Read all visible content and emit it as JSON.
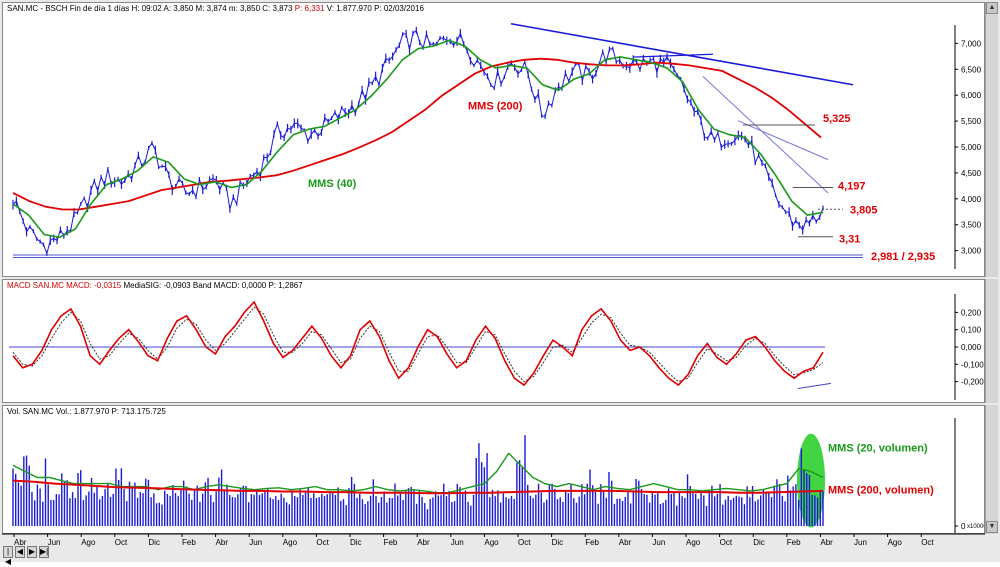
{
  "price_panel": {
    "header": {
      "ticker": "SAN.MC - BSCH",
      "rest": "Fin de día 1 días H: 09:02 A: 3,850 M: 3,874 m: 3,850 C: 3,873",
      "change": "P: 6,331",
      "tail": "V: 1.877.970 P: 02/03/2016"
    }
  },
  "macd_panel": {
    "header": {
      "label": "MACD SAN.MC MACD: -0,0315",
      "rest": "MediaSIG: -0,0903 Band MACD: 0,0000 P: 1,2867"
    }
  },
  "volume_panel": {
    "header": {
      "label": "Vol. SAN.MC Vol.: 1.877.970 P: 713.175.725"
    },
    "scale_tag": "x100000"
  },
  "colors": {
    "price": "#1a1adb",
    "ma200": "#e00000",
    "ma40": "#1a9a1a",
    "trend": "#1a1adb",
    "level_text": "#e00000",
    "macd_line": "#e00000",
    "signal_line": "#333333",
    "zero_line": "#4444cc",
    "volume_bars": "#1a1adb",
    "vol_ma20": "#1a9a1a",
    "vol_ma200": "#e00000",
    "highlight": "#22cc22"
  },
  "chart_data": [
    {
      "type": "line",
      "series": [
        {
          "values": [
            4.0,
            3.4,
            3.15,
            3.3,
            3.6,
            4.1,
            4.4,
            4.3,
            4.6,
            4.9,
            4.35,
            4.1,
            4.2,
            4.35,
            3.9,
            4.3,
            4.6,
            5.2,
            5.3,
            5.15,
            5.3,
            5.5,
            5.7,
            6.0,
            6.4,
            6.8,
            6.9,
            6.7,
            6.95,
            6.8,
            6.4,
            6.1,
            6.45,
            6.3,
            5.5,
            6.05,
            6.3,
            6.2,
            6.6,
            6.5,
            6.4,
            6.45,
            6.4,
            6.0,
            5.4,
            5.0,
            5.15,
            5.1,
            4.6,
            4.0,
            3.6,
            3.5,
            3.8
          ]
        },
        {
          "name": "MMS (40)",
          "values": [
            3.9,
            3.7,
            3.35,
            3.3,
            3.45,
            3.9,
            4.25,
            4.35,
            4.5,
            4.75,
            4.65,
            4.35,
            4.25,
            4.3,
            4.2,
            4.25,
            4.5,
            4.85,
            5.15,
            5.25,
            5.3,
            5.45,
            5.6,
            5.85,
            6.15,
            6.5,
            6.7,
            6.75,
            6.85,
            6.75,
            6.5,
            6.35,
            6.4,
            6.35,
            6.05,
            5.95,
            6.15,
            6.25,
            6.5,
            6.55,
            6.5,
            6.45,
            6.35,
            6.1,
            5.6,
            5.25,
            5.15,
            5.1,
            4.8,
            4.4,
            3.95,
            3.7,
            3.75
          ]
        },
        {
          "name": "MMS (200)",
          "values": [
            4.1,
            3.95,
            3.85,
            3.8,
            3.8,
            3.85,
            3.9,
            3.95,
            4.05,
            4.15,
            4.2,
            4.25,
            4.3,
            4.32,
            4.35,
            4.38,
            4.42,
            4.5,
            4.6,
            4.7,
            4.8,
            4.92,
            5.05,
            5.2,
            5.4,
            5.6,
            5.85,
            6.05,
            6.25,
            6.38,
            6.45,
            6.5,
            6.52,
            6.5,
            6.45,
            6.42,
            6.4,
            6.4,
            6.42,
            6.45,
            6.43,
            6.4,
            6.35,
            6.3,
            6.15,
            6.0,
            5.82,
            5.6,
            5.35,
            5.1
          ]
        }
      ],
      "annotations": [
        "MMS (200)",
        "MMS (40)",
        "5,325",
        "4,197",
        "3,805",
        "3,31",
        "2,981 / 2,935"
      ],
      "yticks": [
        "7,000",
        "6,500",
        "6,000",
        "5,500",
        "5,000",
        "4,500",
        "4,000",
        "3,500",
        "3,000"
      ],
      "ylim": [
        2.8,
        7.2
      ]
    },
    {
      "type": "line",
      "series": [
        {
          "values": [
            -0.05,
            -0.12,
            -0.1,
            -0.02,
            0.1,
            0.18,
            0.22,
            0.12,
            -0.05,
            -0.1,
            -0.02,
            0.05,
            0.1,
            0.03,
            -0.05,
            -0.08,
            0.05,
            0.15,
            0.18,
            0.1,
            0.0,
            -0.04,
            0.06,
            0.12,
            0.2,
            0.26,
            0.15,
            0.02,
            -0.06,
            -0.02,
            0.05,
            0.12,
            0.05,
            -0.05,
            -0.12,
            -0.05,
            0.1,
            0.15,
            0.06,
            -0.08,
            -0.18,
            -0.12,
            0.0,
            0.1,
            0.06,
            -0.04,
            -0.12,
            -0.08,
            0.04,
            0.12,
            0.05,
            -0.08,
            -0.18,
            -0.22,
            -0.15,
            -0.05,
            0.04,
            0.0,
            -0.05,
            0.1,
            0.18,
            0.22,
            0.15,
            0.04,
            -0.02,
            0.0,
            -0.05,
            -0.12,
            -0.18,
            -0.22,
            -0.16,
            -0.05,
            0.02,
            -0.06,
            -0.1,
            -0.04,
            0.04,
            0.06,
            0.0,
            -0.08,
            -0.14,
            -0.18,
            -0.14,
            -0.12,
            -0.03
          ]
        },
        {
          "values": [
            -0.03,
            -0.1,
            -0.11,
            -0.05,
            0.05,
            0.14,
            0.2,
            0.15,
            0.02,
            -0.07,
            -0.05,
            0.02,
            0.08,
            0.05,
            -0.02,
            -0.07,
            0.0,
            0.11,
            0.16,
            0.13,
            0.04,
            -0.02,
            0.02,
            0.09,
            0.16,
            0.23,
            0.19,
            0.07,
            -0.03,
            -0.03,
            0.02,
            0.09,
            0.07,
            -0.01,
            -0.09,
            -0.07,
            0.05,
            0.12,
            0.09,
            -0.03,
            -0.14,
            -0.14,
            -0.04,
            0.06,
            0.07,
            0.0,
            -0.09,
            -0.09,
            0.0,
            0.09,
            0.07,
            -0.04,
            -0.14,
            -0.2,
            -0.17,
            -0.09,
            0.0,
            0.01,
            -0.03,
            0.05,
            0.14,
            0.19,
            0.17,
            0.08,
            0.01,
            0.0,
            -0.03,
            -0.09,
            -0.15,
            -0.2,
            -0.18,
            -0.09,
            -0.01,
            -0.04,
            -0.08,
            -0.06,
            0.01,
            0.05,
            0.02,
            -0.05,
            -0.11,
            -0.16,
            -0.15,
            -0.13,
            -0.09
          ]
        }
      ],
      "yticks": [
        "0,200",
        "0,100",
        "0,000",
        "-0,100",
        "-0,200"
      ],
      "ylim": [
        -0.26,
        0.26
      ]
    },
    {
      "type": "bar",
      "series": [
        {
          "values": [
            10,
            8,
            14,
            6,
            7,
            12,
            6,
            9,
            8,
            7,
            11,
            6,
            8,
            7,
            9,
            6,
            10,
            7,
            8,
            6,
            9,
            7,
            6,
            8,
            7,
            6,
            9,
            6,
            7,
            8,
            6,
            10,
            7,
            6,
            8,
            7,
            6,
            9,
            7,
            8,
            6,
            7,
            6,
            8,
            7,
            6,
            7,
            6,
            8,
            7,
            6,
            9,
            7,
            6,
            8,
            6,
            7,
            6,
            8,
            6,
            7,
            6,
            5,
            7,
            6,
            8,
            6,
            7,
            9,
            6,
            16,
            14,
            7,
            6,
            8,
            7,
            12,
            15,
            8,
            7,
            6,
            9,
            7,
            6,
            8,
            6,
            7,
            10,
            6,
            7,
            9,
            6,
            7,
            6,
            8,
            7,
            6,
            7,
            6,
            8,
            6,
            7,
            9,
            7,
            6,
            8,
            7,
            6,
            7,
            5,
            6,
            8,
            6,
            7,
            6,
            8,
            6,
            9,
            7,
            15,
            9,
            8,
            7
          ]
        },
        {
          "name": "MMS (20, volumen)",
          "values": [
            10,
            9,
            8,
            8,
            7.5,
            7,
            7,
            7,
            7,
            6.5,
            6.5,
            6.5,
            6,
            6.5,
            6.5,
            6,
            6.5,
            6.8,
            6.5,
            6.2,
            6,
            6.2,
            6.3,
            6,
            6.2,
            6.5,
            6,
            6,
            5.8,
            6,
            6.5,
            6,
            5.8,
            6,
            5.8,
            5.5,
            5.5,
            6,
            6.5,
            7,
            9,
            12,
            10,
            8,
            7,
            6.5,
            7,
            6.5,
            6,
            6.5,
            6.2,
            6,
            6.5,
            7,
            6.5,
            6,
            6,
            5.8,
            6,
            6.2,
            6,
            5.8,
            6,
            6.5,
            7,
            9.5,
            9,
            8
          ]
        },
        {
          "name": "MMS (200, volumen)",
          "values": [
            7.5,
            7.3,
            7.0,
            6.8,
            6.6,
            6.4,
            6.3,
            6.2,
            6.1,
            6.0,
            5.9,
            5.8,
            5.8,
            5.7,
            5.7,
            5.6,
            5.6,
            5.5,
            5.5,
            5.5,
            5.4,
            5.4,
            5.5,
            5.5,
            5.6,
            5.7,
            5.8,
            5.8,
            5.8,
            5.8,
            5.7,
            5.6,
            5.6,
            5.6,
            5.6,
            5.5,
            5.5,
            5.6,
            5.7,
            5.8
          ]
        }
      ],
      "annotations": [
        "MMS (20, volumen)",
        "MMS (200, volumen)"
      ],
      "yticks": [
        "15.000",
        "10.000",
        "5.000",
        "0"
      ],
      "ylim": [
        0,
        17.5
      ]
    }
  ],
  "x_axis": {
    "labels": [
      "Abr",
      "Jun",
      "Ago",
      "Oct",
      "Dic",
      "Feb",
      "Abr",
      "Jun",
      "Ago",
      "Oct",
      "Dic",
      "Feb",
      "Abr",
      "Jun",
      "Ago",
      "Oct",
      "Dic",
      "Feb",
      "Abr",
      "Jun",
      "Ago",
      "Oct",
      "Dic",
      "Feb",
      "Abr",
      "Jun",
      "Ago",
      "Oct"
    ]
  },
  "nav": {
    "buttons": [
      "|◀",
      "◀",
      "▶",
      "▶|"
    ]
  }
}
